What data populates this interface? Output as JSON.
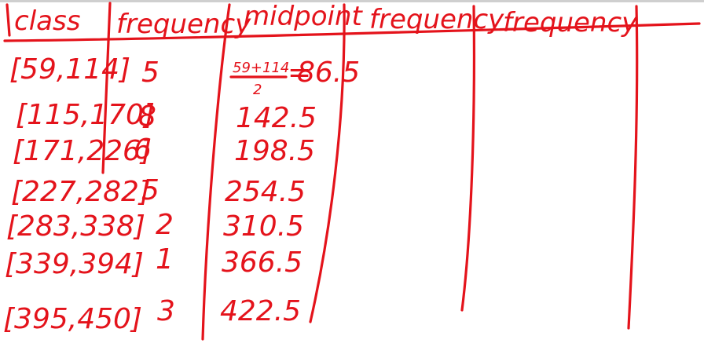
{
  "table": {
    "headers": [
      "class",
      "frequency",
      "midpoint",
      "frequency",
      "frequency"
    ],
    "rows": [
      {
        "class": "[59,114]",
        "frequency": "5",
        "midpoint": "86.5"
      },
      {
        "class": "[115,170]",
        "frequency": "8",
        "midpoint": "142.5"
      },
      {
        "class": "[171,226]",
        "frequency": "6",
        "midpoint": "198.5"
      },
      {
        "class": "[227,282]",
        "frequency": "5",
        "midpoint": "254.5"
      },
      {
        "class": "[283,338]",
        "frequency": "2",
        "midpoint": "310.5"
      },
      {
        "class": "[339,394]",
        "frequency": "1",
        "midpoint": "366.5"
      },
      {
        "class": "[395,450]",
        "frequency": "3",
        "midpoint": "422.5"
      }
    ],
    "midpoint_work": {
      "numerator": "59+114",
      "denominator": "2",
      "equals": "="
    }
  },
  "colors": {
    "ink": "#e4131b",
    "paper": "#ffffff"
  }
}
